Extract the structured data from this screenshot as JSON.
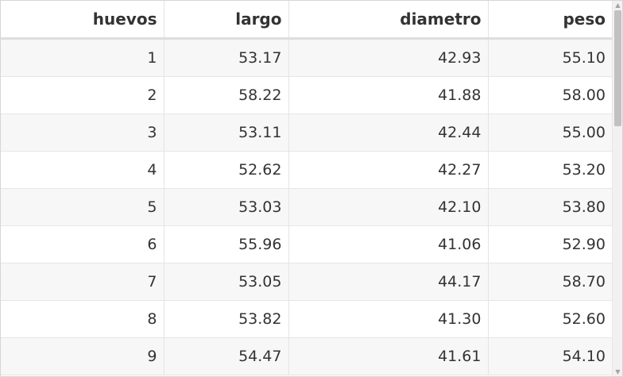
{
  "table": {
    "columns": [
      "huevos",
      "largo",
      "diametro",
      "peso"
    ],
    "rows": [
      [
        "1",
        "53.17",
        "42.93",
        "55.10"
      ],
      [
        "2",
        "58.22",
        "41.88",
        "58.00"
      ],
      [
        "3",
        "53.11",
        "42.44",
        "55.00"
      ],
      [
        "4",
        "52.62",
        "42.27",
        "53.20"
      ],
      [
        "5",
        "53.03",
        "42.10",
        "53.80"
      ],
      [
        "6",
        "55.96",
        "41.06",
        "52.90"
      ],
      [
        "7",
        "53.05",
        "44.17",
        "58.70"
      ],
      [
        "8",
        "53.82",
        "41.30",
        "52.60"
      ],
      [
        "9",
        "54.47",
        "41.61",
        "54.10"
      ]
    ]
  },
  "scrollbar": {
    "up_icon": "triangle-up-icon",
    "down_icon": "triangle-down-icon",
    "up_glyph": "▲",
    "down_glyph": "▼"
  }
}
